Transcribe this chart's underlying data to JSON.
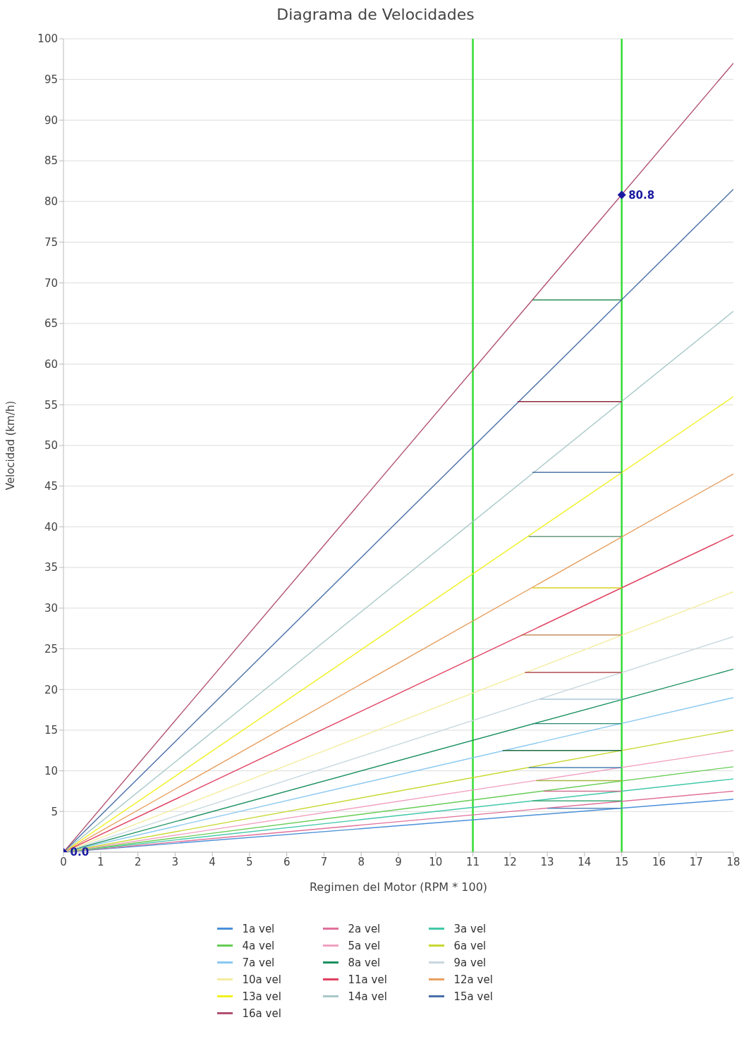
{
  "chart_data": {
    "type": "line",
    "title": "Diagrama de Velocidades",
    "xlabel": "Regimen del Motor (RPM * 100)",
    "ylabel": "Velocidad (km/h)",
    "xlim": [
      0,
      18
    ],
    "xticks": [
      0,
      1,
      2,
      3,
      4,
      5,
      6,
      7,
      8,
      9,
      10,
      11,
      12,
      13,
      14,
      15,
      16,
      17,
      18
    ],
    "ylim": [
      0,
      100
    ],
    "yticks": [
      5,
      10,
      15,
      20,
      25,
      30,
      35,
      40,
      45,
      50,
      55,
      60,
      65,
      70,
      75,
      80,
      85,
      90,
      95,
      100
    ],
    "grid": "y",
    "legend": "bottom",
    "marker": "none",
    "line_style": "solid",
    "ref_lines": [
      {
        "axis": "x",
        "value": 11,
        "color": "#33dd33"
      },
      {
        "axis": "x",
        "value": 15,
        "color": "#33dd33"
      }
    ],
    "series": [
      {
        "name": "1a vel",
        "color": "#4a90d9",
        "x": [
          0,
          18
        ],
        "values": [
          0,
          6.5
        ]
      },
      {
        "name": "2a vel",
        "color": "#e0709a",
        "x": [
          0,
          18
        ],
        "values": [
          0,
          7.5
        ]
      },
      {
        "name": "3a vel",
        "color": "#40c8a8",
        "x": [
          0,
          18
        ],
        "values": [
          0,
          9
        ]
      },
      {
        "name": "4a vel",
        "color": "#66cc55",
        "x": [
          0,
          18
        ],
        "values": [
          0,
          10.5
        ]
      },
      {
        "name": "5a vel",
        "color": "#f0a0c0",
        "x": [
          0,
          18
        ],
        "values": [
          0,
          12.5
        ]
      },
      {
        "name": "6a vel",
        "color": "#c8d830",
        "x": [
          0,
          18
        ],
        "values": [
          0,
          15
        ]
      },
      {
        "name": "7a vel",
        "color": "#88c8f0",
        "x": [
          0,
          18
        ],
        "values": [
          0,
          19
        ]
      },
      {
        "name": "8a vel",
        "color": "#1a9060",
        "x": [
          0,
          18
        ],
        "values": [
          0,
          22.5
        ]
      },
      {
        "name": "9a vel",
        "color": "#c8d8e0",
        "x": [
          0,
          18
        ],
        "values": [
          0,
          26.5
        ]
      },
      {
        "name": "10a vel",
        "color": "#f4eca0",
        "x": [
          0,
          18
        ],
        "values": [
          0,
          32
        ]
      },
      {
        "name": "11a vel",
        "color": "#e04060",
        "x": [
          0,
          18
        ],
        "values": [
          0,
          39
        ]
      },
      {
        "name": "12a vel",
        "color": "#e8a060",
        "x": [
          0,
          18
        ],
        "values": [
          0,
          46.5
        ]
      },
      {
        "name": "13a vel",
        "color": "#f0f020",
        "x": [
          0,
          18
        ],
        "values": [
          0,
          56
        ]
      },
      {
        "name": "14a vel",
        "color": "#a8c8c8",
        "x": [
          0,
          18
        ],
        "values": [
          0,
          66.5
        ]
      },
      {
        "name": "15a vel",
        "color": "#4a70a8",
        "x": [
          0,
          18
        ],
        "values": [
          0,
          81.5
        ]
      },
      {
        "name": "16a vel",
        "color": "#b05070",
        "x": [
          0,
          18
        ],
        "values": [
          0,
          97
        ]
      },
      {
        "color": "#2a8a50",
        "x": [
          12.6,
          15
        ],
        "values": [
          67.9,
          67.9
        ]
      },
      {
        "color": "#8a2a3a",
        "x": [
          12.2,
          15
        ],
        "values": [
          55.4,
          55.4
        ]
      },
      {
        "color": "#2a5a90",
        "x": [
          12.6,
          15
        ],
        "values": [
          46.7,
          46.7
        ]
      },
      {
        "color": "#6a9a80",
        "x": [
          12.5,
          15
        ],
        "values": [
          38.8,
          38.8
        ]
      },
      {
        "color": "#d8d020",
        "x": [
          12.6,
          15
        ],
        "values": [
          32.5,
          32.5
        ]
      },
      {
        "color": "#b87a40",
        "x": [
          12.3,
          15
        ],
        "values": [
          26.7,
          26.7
        ]
      },
      {
        "color": "#b04a50",
        "x": [
          12.4,
          15
        ],
        "values": [
          22.1,
          22.1
        ]
      },
      {
        "color": "#a8c8d8",
        "x": [
          12.8,
          15
        ],
        "values": [
          18.8,
          18.8
        ]
      },
      {
        "color": "#2a8a70",
        "x": [
          12.6,
          15
        ],
        "values": [
          15.8,
          15.8
        ]
      },
      {
        "color": "#1a6a40",
        "x": [
          11.8,
          15
        ],
        "values": [
          12.5,
          12.5
        ]
      },
      {
        "color": "#4a80b0",
        "x": [
          12.5,
          15
        ],
        "values": [
          10.4,
          10.4
        ]
      },
      {
        "color": "#a0b840",
        "x": [
          12.7,
          15
        ],
        "values": [
          8.8,
          8.8
        ]
      },
      {
        "color": "#d07090",
        "x": [
          12.9,
          15
        ],
        "values": [
          7.5,
          7.5
        ]
      },
      {
        "color": "#40a878",
        "x": [
          12.6,
          15
        ],
        "values": [
          6.3,
          6.3
        ]
      },
      {
        "color": "#5a8ac0",
        "x": [
          13.0,
          15
        ],
        "values": [
          5.4,
          5.4
        ]
      },
      {
        "type": "scatter",
        "color": "#1a1aa0",
        "marker": "diamond",
        "x": [
          0,
          15
        ],
        "values": [
          0,
          80.8
        ],
        "value_labels": [
          "0.0",
          "80.8"
        ]
      }
    ]
  }
}
